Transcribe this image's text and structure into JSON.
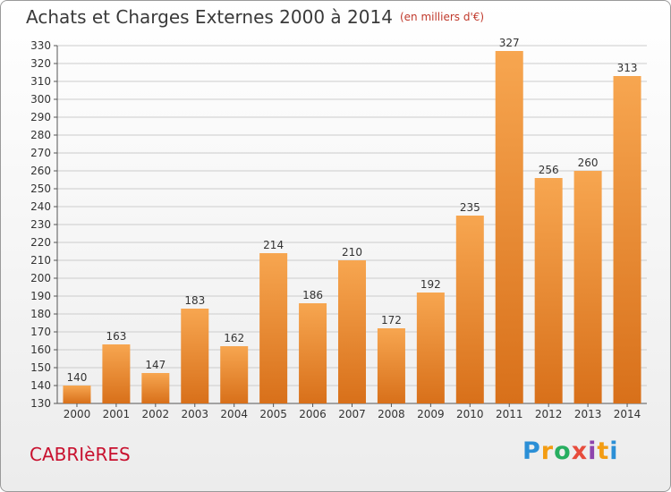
{
  "header": {
    "title": "Achats et Charges Externes 2000 à 2014",
    "subtitle": "(en milliers d'€)"
  },
  "commune": "CABRIèRES",
  "logo": {
    "letters": [
      "P",
      "r",
      "o",
      "x",
      "i",
      "t",
      "i"
    ],
    "colors": [
      "#2b8fd6",
      "#f39c12",
      "#27ae60",
      "#e74c3c",
      "#8e44ad",
      "#f39c12",
      "#2b8fd6"
    ]
  },
  "colors": {
    "bar_light": "#f7a650",
    "bar_dark": "#d8701a",
    "grid": "#cccccc"
  },
  "chart_data": {
    "type": "bar",
    "title": "Achats et Charges Externes 2000 à 2014",
    "subtitle": "(en milliers d'€)",
    "categories": [
      "2000",
      "2001",
      "2002",
      "2003",
      "2004",
      "2005",
      "2006",
      "2007",
      "2008",
      "2009",
      "2010",
      "2011",
      "2012",
      "2013",
      "2014"
    ],
    "values": [
      140,
      163,
      147,
      183,
      162,
      214,
      186,
      210,
      172,
      192,
      235,
      327,
      256,
      260,
      313
    ],
    "ylim": [
      130,
      330
    ],
    "ytick_step": 10,
    "grid": true,
    "data_labels": true
  }
}
